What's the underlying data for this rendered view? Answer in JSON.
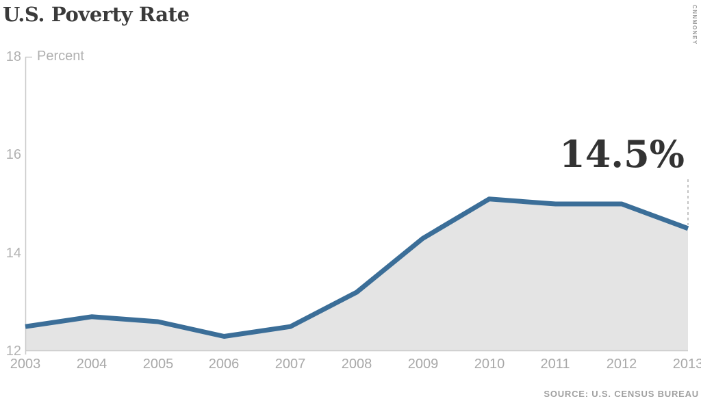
{
  "header": {
    "title": "U.S. Poverty Rate",
    "brand": "CNNMONEY"
  },
  "chart_data": {
    "type": "area",
    "title": "U.S. Poverty Rate",
    "unit_label": "Percent",
    "categories": [
      "2003",
      "2004",
      "2005",
      "2006",
      "2007",
      "2008",
      "2009",
      "2010",
      "2011",
      "2012",
      "2013"
    ],
    "values": [
      12.5,
      12.7,
      12.6,
      12.3,
      12.5,
      13.2,
      14.3,
      15.1,
      15.0,
      15.0,
      14.5
    ],
    "ylim": [
      12,
      18
    ],
    "yticks": [
      12,
      14,
      16,
      18
    ],
    "grid": "off",
    "annotation": {
      "text": "14.5%",
      "year": "2013",
      "value": 14.5
    },
    "line_color": "#3b6e98",
    "fill_color": "#e4e4e4",
    "axis_color": "#c9c9c9",
    "dash_color": "#c4c4c4"
  },
  "footer": {
    "source": "SOURCE: U.S. CENSUS BUREAU"
  }
}
